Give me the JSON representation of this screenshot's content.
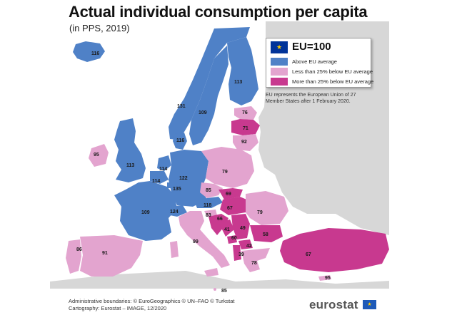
{
  "header": {
    "title": "Actual individual consumption per capita",
    "subtitle": "(in PPS, 2019)"
  },
  "legend": {
    "title": "EU=100",
    "flag_glyph": "★",
    "items": [
      {
        "label": "Above EU average",
        "color": "#4f81c7"
      },
      {
        "label": "Less than 25% below EU average",
        "color": "#e3a4cf"
      },
      {
        "label": "More than 25% below EU average",
        "color": "#c8398f"
      }
    ]
  },
  "note": "EU represents the European Union of 27 Member States after 1 February 2020.",
  "footer": {
    "line1": "Administrative boundaries: © EuroGeographics © UN–FAO © Turkstat",
    "line2": "Cartography: Eurostat – IMAGE, 12/2020"
  },
  "brand": {
    "name": "eurostat",
    "flag_glyph": "★"
  },
  "colors": {
    "above": "#4f81c7",
    "less_than_25_below": "#e3a4cf",
    "more_than_25_below": "#c8398f",
    "non_data": "#d7d7d7",
    "sea": "#ffffff"
  },
  "map_values": [
    {
      "region": "Iceland",
      "value": "116"
    },
    {
      "region": "Norway",
      "value": "131"
    },
    {
      "region": "Sweden",
      "value": "109"
    },
    {
      "region": "Finland",
      "value": "113"
    },
    {
      "region": "Estonia",
      "value": "76"
    },
    {
      "region": "Latvia",
      "value": "71"
    },
    {
      "region": "Lithuania",
      "value": "92"
    },
    {
      "region": "Denmark",
      "value": "116"
    },
    {
      "region": "Ireland",
      "value": "95"
    },
    {
      "region": "United Kingdom",
      "value": "113"
    },
    {
      "region": "Netherlands",
      "value": "114"
    },
    {
      "region": "Belgium",
      "value": "114"
    },
    {
      "region": "Luxembourg",
      "value": "135"
    },
    {
      "region": "Germany",
      "value": "122"
    },
    {
      "region": "Poland",
      "value": "79"
    },
    {
      "region": "Czechia",
      "value": "85"
    },
    {
      "region": "Slovakia",
      "value": "69"
    },
    {
      "region": "Austria",
      "value": "118"
    },
    {
      "region": "Hungary",
      "value": "67"
    },
    {
      "region": "Romania",
      "value": "79"
    },
    {
      "region": "France",
      "value": "109"
    },
    {
      "region": "Switzerland",
      "value": "124"
    },
    {
      "region": "Slovenia",
      "value": "83"
    },
    {
      "region": "Croatia",
      "value": "66"
    },
    {
      "region": "Bosnia and Herzegovina",
      "value": "41"
    },
    {
      "region": "Serbia",
      "value": "49"
    },
    {
      "region": "Montenegro",
      "value": "60"
    },
    {
      "region": "North Macedonia",
      "value": "42"
    },
    {
      "region": "Albania",
      "value": "39"
    },
    {
      "region": "Bulgaria",
      "value": "58"
    },
    {
      "region": "Greece",
      "value": "78"
    },
    {
      "region": "Italy",
      "value": "99"
    },
    {
      "region": "Portugal",
      "value": "86"
    },
    {
      "region": "Spain",
      "value": "91"
    },
    {
      "region": "Türkiye",
      "value": "67"
    },
    {
      "region": "Cyprus",
      "value": "95"
    },
    {
      "region": "Malta",
      "value": "85"
    }
  ]
}
